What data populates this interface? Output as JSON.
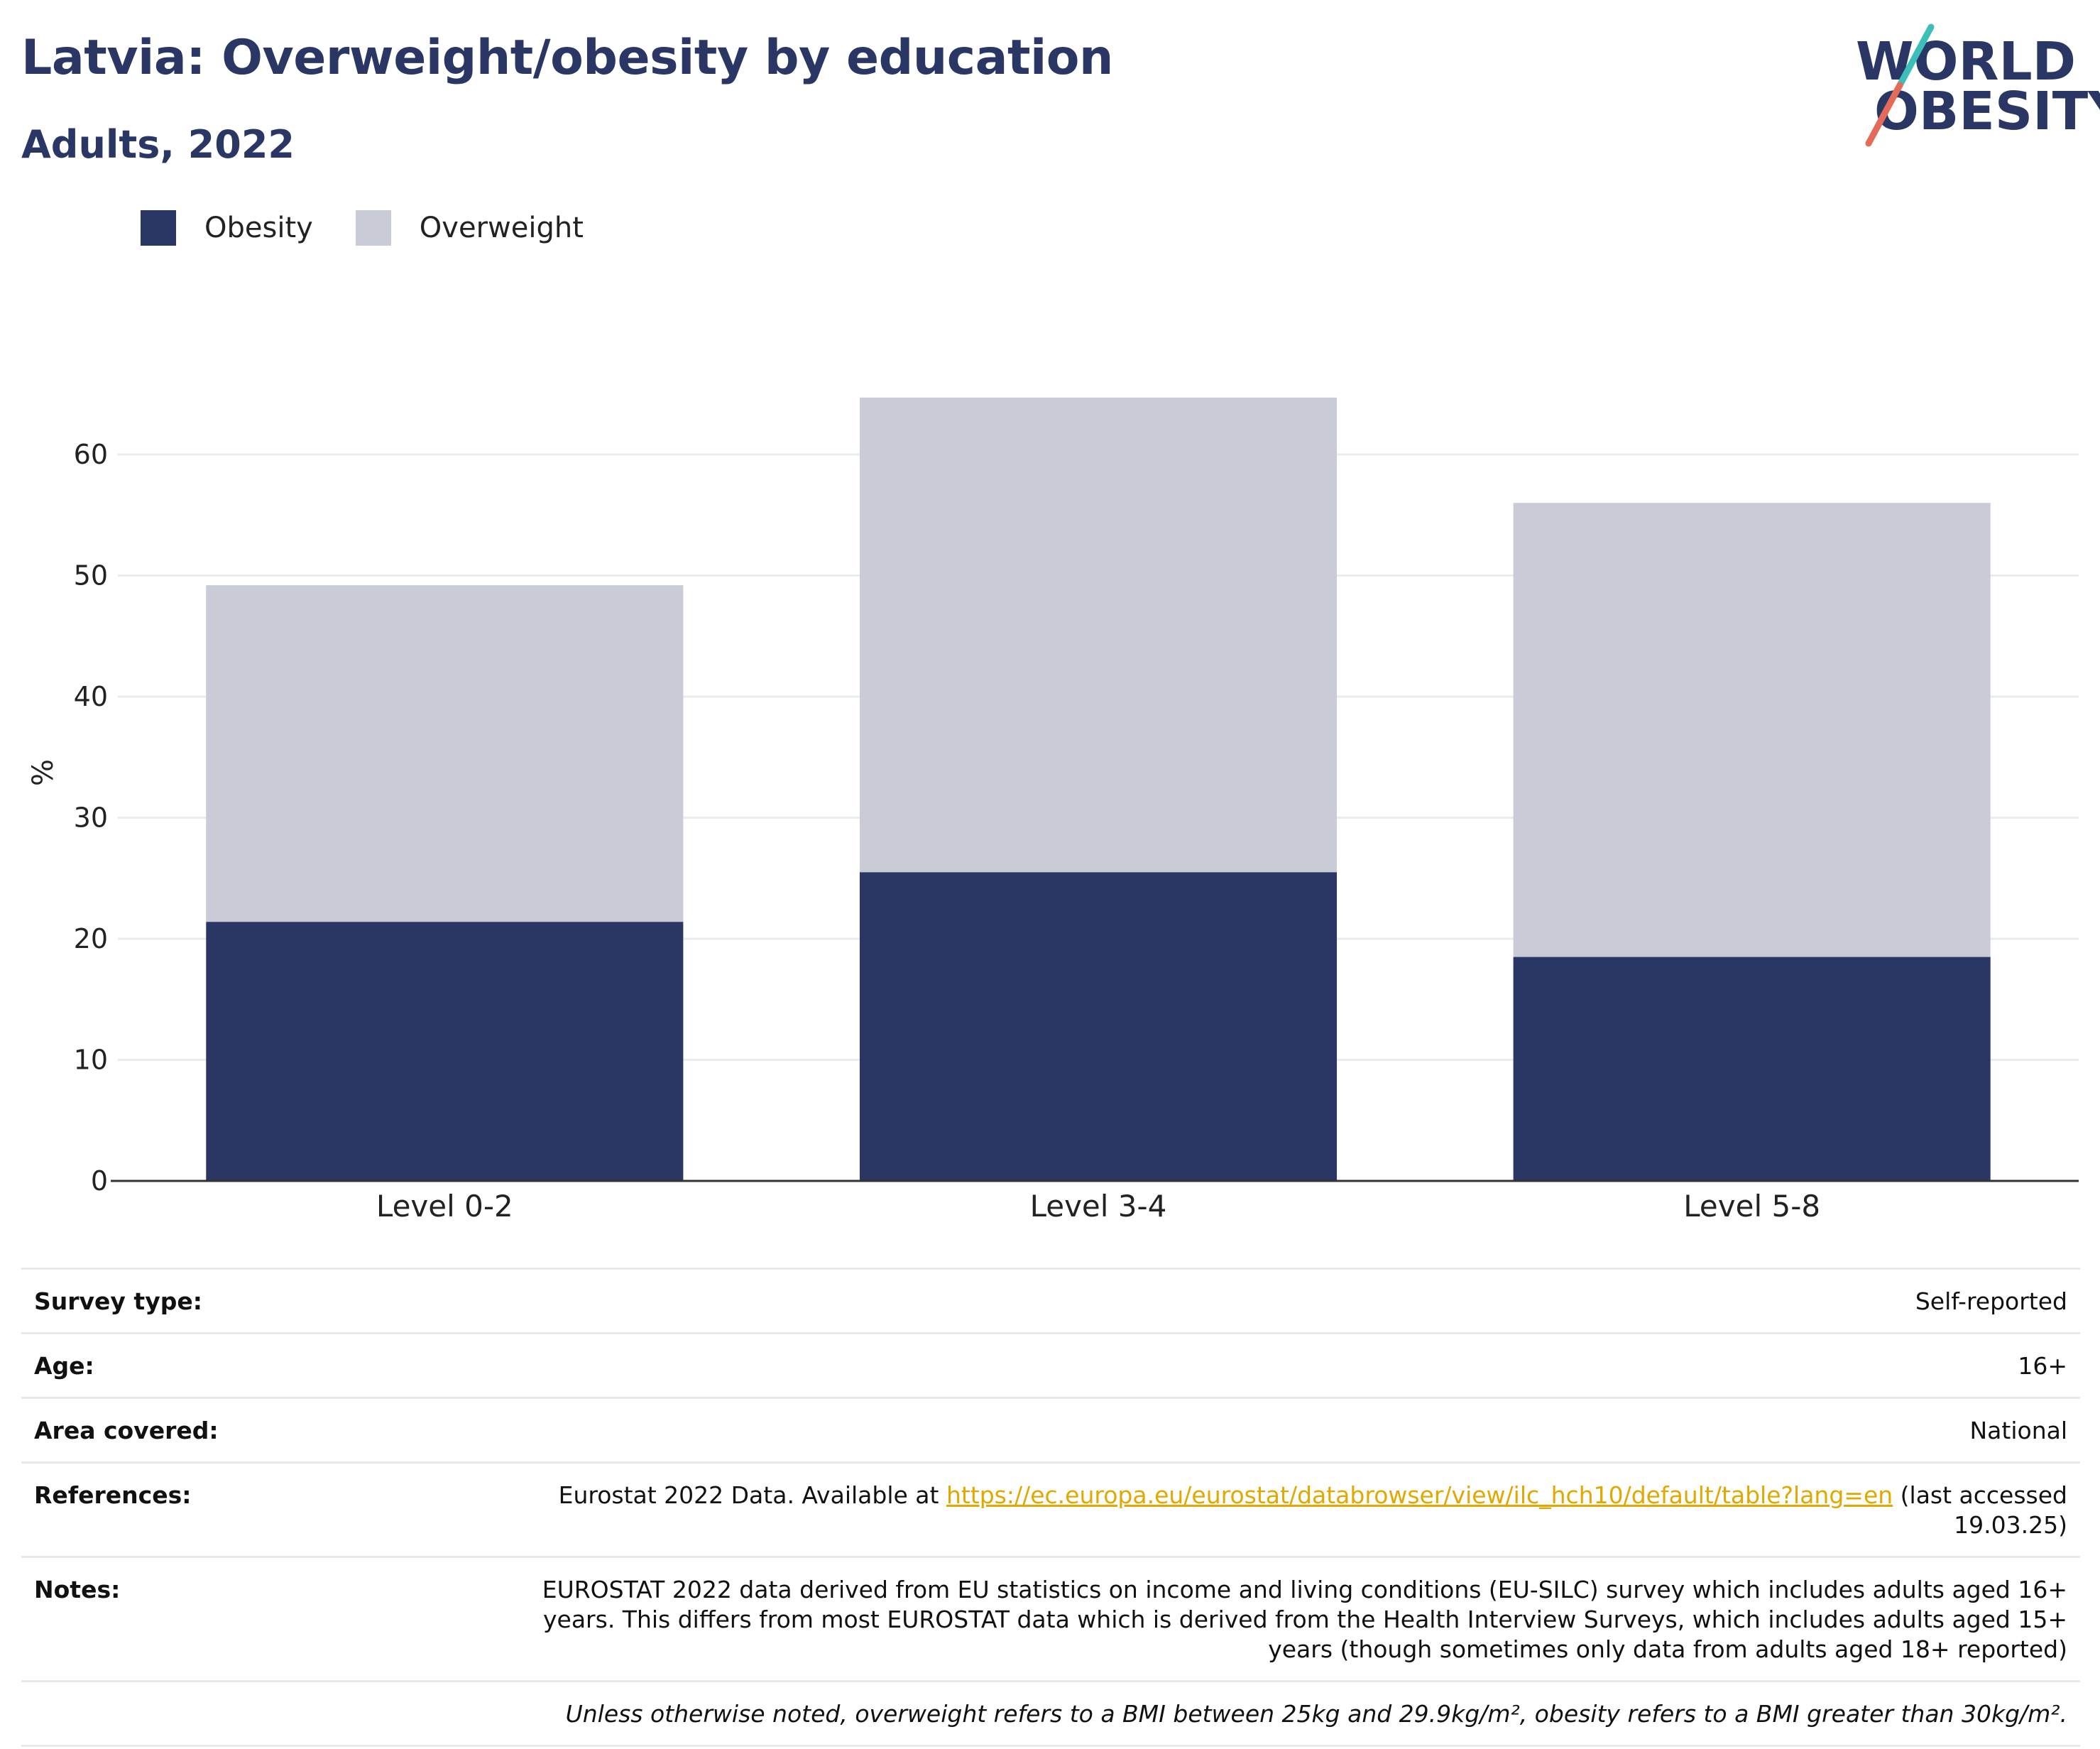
{
  "header": {
    "title": "Latvia: Overweight/obesity by education",
    "subtitle": "Adults, 2022"
  },
  "logo": {
    "line1": "WORLD",
    "line2": "OBESITY",
    "colors": {
      "text": "#2a3765",
      "slash_top": "#3cbfb8",
      "slash_bottom": "#e46b5a"
    }
  },
  "legend": [
    {
      "label": "Obesity",
      "color": "#2a3764"
    },
    {
      "label": "Overweight",
      "color": "#c9cbd6"
    }
  ],
  "chart_data": {
    "type": "bar",
    "stacked": true,
    "categories": [
      "Level 0-2",
      "Level 3-4",
      "Level 5-8"
    ],
    "series": [
      {
        "name": "Obesity",
        "values": [
          21.4,
          25.5,
          18.5
        ],
        "color": "#2a3764"
      },
      {
        "name": "Overweight",
        "values": [
          27.8,
          39.2,
          37.5
        ],
        "color": "#c9cbd6"
      }
    ],
    "ylabel": "%",
    "yticks": [
      0,
      10,
      20,
      30,
      40,
      50,
      60
    ],
    "ylim": [
      0,
      68
    ],
    "grid": true,
    "legend_position": "top-left"
  },
  "metadata": {
    "survey_type": {
      "label": "Survey type:",
      "value": "Self-reported"
    },
    "age": {
      "label": "Age:",
      "value": "16+"
    },
    "area": {
      "label": "Area covered:",
      "value": "National"
    },
    "references": {
      "label": "References:",
      "prefix": "Eurostat 2022 Data. Available at ",
      "link": "https://ec.europa.eu/eurostat/databrowser/view/ilc_hch10/default/table?lang=en",
      "suffix": " (last accessed 19.03.25)"
    },
    "notes": {
      "label": "Notes:",
      "value": "EUROSTAT 2022 data derived from EU statistics on income and living conditions (EU-SILC) survey which includes adults aged 16+ years. This differs from most EUROSTAT data which is derived from the Health Interview Surveys, which includes adults aged 15+ years (though sometimes only data from adults aged 18+ reported)"
    },
    "footnote": "Unless otherwise noted, overweight refers to a BMI between 25kg and 29.9kg/m², obesity refers to a BMI greater than 30kg/m²."
  }
}
